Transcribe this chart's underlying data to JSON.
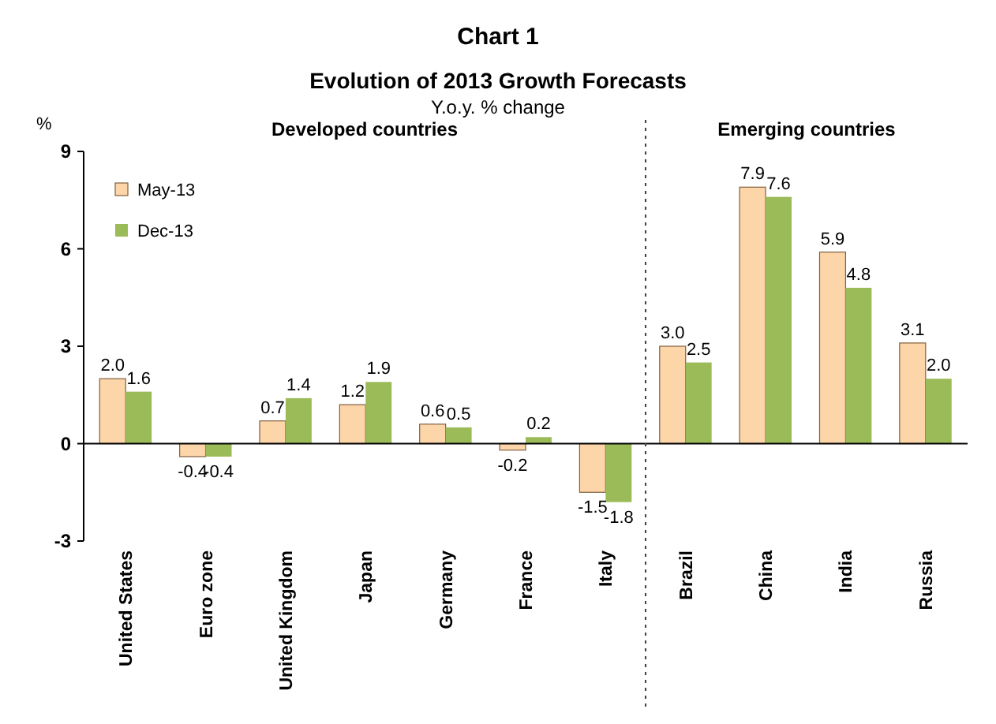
{
  "chart_data": {
    "type": "bar",
    "title": "Chart 1",
    "subtitle": "Evolution of 2013 Growth Forecasts",
    "ylabel": "%",
    "annotations": [
      "Y.o.y. % change",
      "Developed countries",
      "Emerging countries"
    ],
    "categories": [
      "United States",
      "Euro zone",
      "United Kingdom",
      "Japan",
      "Germany",
      "France",
      "Italy",
      "Brazil",
      "China",
      "India",
      "Russia"
    ],
    "series": [
      {
        "name": "May-13",
        "color": "#fcd5a8",
        "values": [
          2.0,
          -0.4,
          0.7,
          1.2,
          0.6,
          -0.2,
          -1.5,
          3.0,
          7.9,
          5.9,
          3.1
        ]
      },
      {
        "name": "Dec-13",
        "color": "#9bbb59",
        "values": [
          1.6,
          -0.4,
          1.4,
          1.9,
          0.5,
          0.2,
          -1.8,
          2.5,
          7.6,
          4.8,
          2.0
        ]
      }
    ],
    "value_labels": [
      [
        "2.0",
        "-0.4",
        "0.7",
        "1.2",
        "0.6",
        "-0.2",
        "-1.5",
        "3.0",
        "7.9",
        "5.9",
        "3.1"
      ],
      [
        "1.6",
        "-0.4",
        "1.4",
        "1.9",
        "0.5",
        "0.2",
        "-1.8",
        "2.5",
        "7.6",
        "4.8",
        "2.0"
      ]
    ],
    "ylim": [
      -3,
      9
    ],
    "yticks": [
      -3,
      0,
      3,
      6,
      9
    ],
    "legend": "top left"
  }
}
